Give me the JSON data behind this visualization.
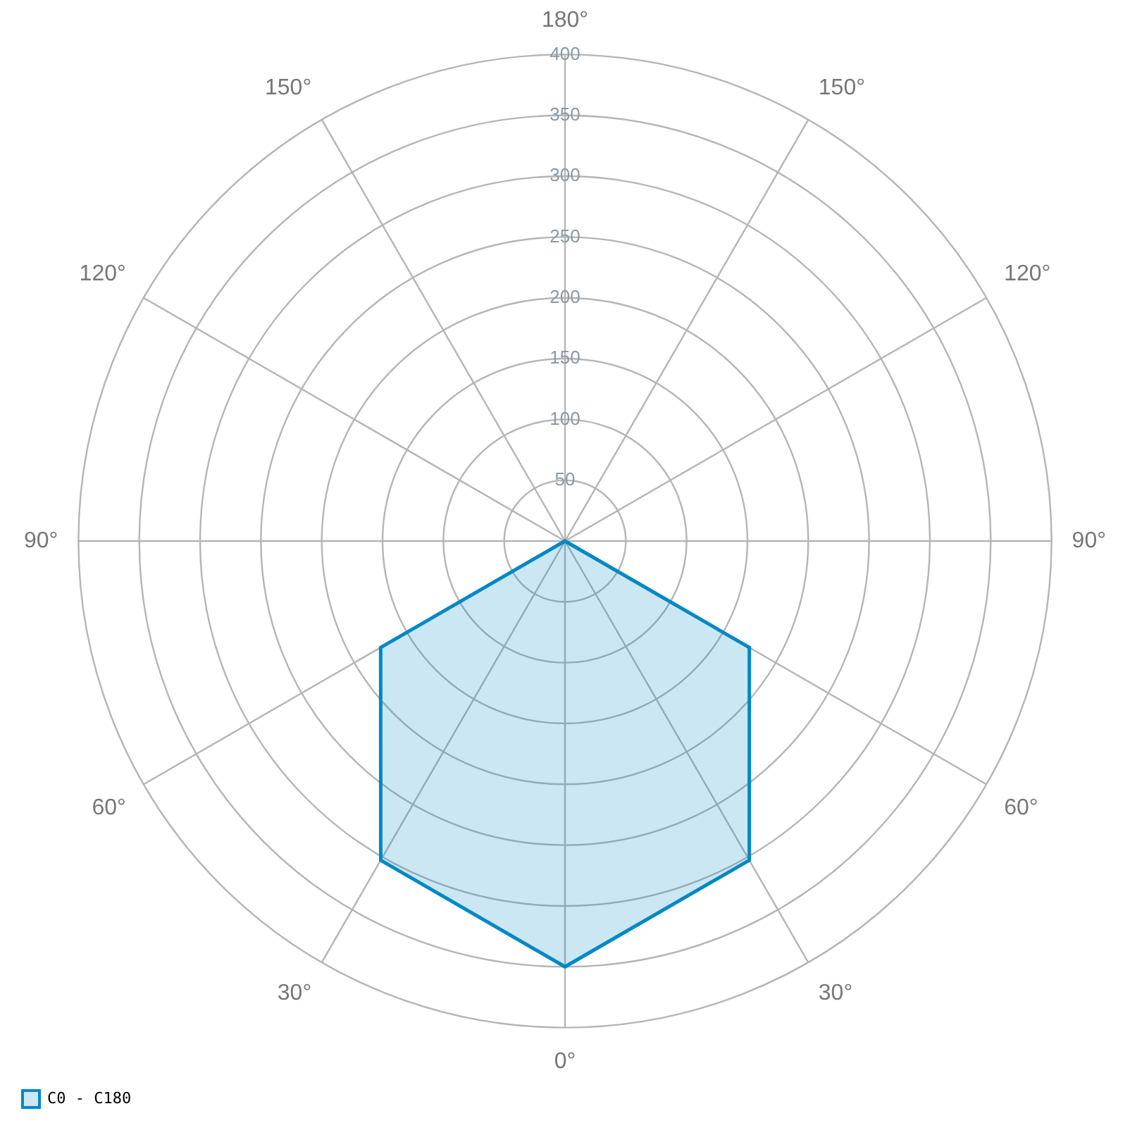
{
  "chart_data": {
    "type": "radar",
    "categories": [
      "180°",
      "150°",
      "120°",
      "90°",
      "60°",
      "30°",
      "0°",
      "30°",
      "60°",
      "90°",
      "120°",
      "150°"
    ],
    "series": [
      {
        "name": "C0 - C180",
        "color": "#0088c6",
        "values": [
          0,
          0,
          0,
          0,
          175,
          303,
          350,
          303,
          175,
          0,
          0,
          0
        ]
      }
    ],
    "ylim": [
      0,
      400
    ],
    "yticks": [
      50,
      100,
      150,
      200,
      250,
      300,
      350,
      400
    ],
    "grid": true,
    "legend": "bottom left",
    "marker": "none"
  }
}
